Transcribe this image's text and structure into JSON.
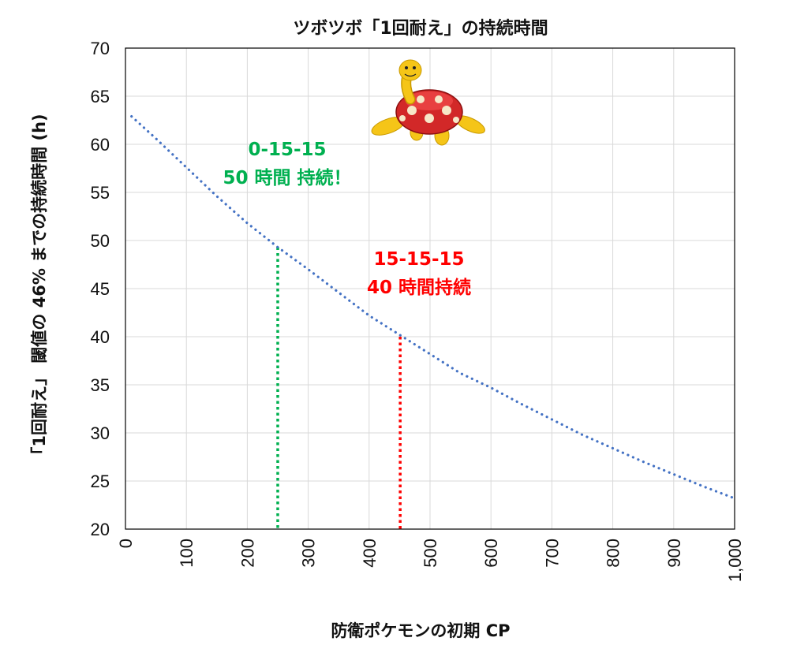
{
  "chart_data": {
    "type": "line",
    "title": "ツボツボ「1回耐え」の持続時間",
    "xlabel": "防衛ポケモンの初期 CP",
    "ylabel": "「1回耐え」 閾値の 46% までの持続時間 (h)",
    "xlim": [
      0,
      1000
    ],
    "ylim": [
      20,
      70
    ],
    "xticks": [
      0,
      100,
      200,
      300,
      400,
      500,
      600,
      700,
      800,
      900,
      1000
    ],
    "xtick_labels": [
      "0",
      "100",
      "200",
      "300",
      "400",
      "500",
      "600",
      "700",
      "800",
      "900",
      "1,000"
    ],
    "yticks": [
      20,
      25,
      30,
      35,
      40,
      45,
      50,
      55,
      60,
      65,
      70
    ],
    "grid": true,
    "series": [
      {
        "style": "dotted",
        "color": "#4472C4",
        "x": [
          10,
          50,
          100,
          150,
          200,
          250,
          300,
          350,
          400,
          450,
          500,
          550,
          600,
          650,
          700,
          750,
          800,
          850,
          900,
          950,
          1000
        ],
        "y": [
          62.9,
          60.6,
          57.6,
          54.6,
          51.8,
          49.3,
          47.0,
          44.6,
          42.2,
          40.2,
          38.2,
          36.2,
          34.7,
          33.0,
          31.4,
          29.8,
          28.4,
          27.0,
          25.7,
          24.4,
          23.2
        ]
      }
    ],
    "vlines": [
      {
        "x": 250,
        "y": 49.3,
        "color": "#00B050"
      },
      {
        "x": 451,
        "y": 40.0,
        "color": "#FF0000"
      }
    ],
    "annotations": [
      {
        "lines": [
          "0-15-15",
          "50 時間 持続！"
        ],
        "color": "#00B050"
      },
      {
        "lines": [
          "15-15-15",
          "40 時間持続"
        ],
        "color": "#FF0000"
      }
    ]
  }
}
